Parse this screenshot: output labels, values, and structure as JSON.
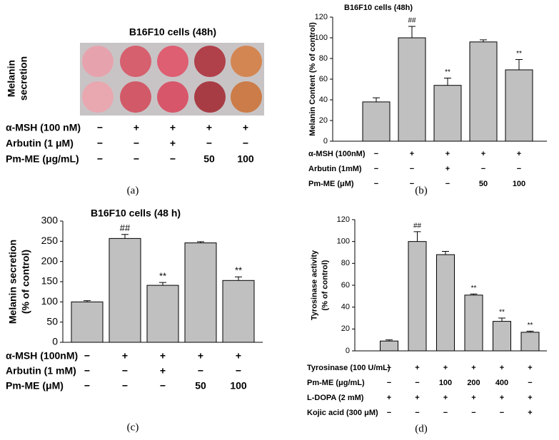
{
  "photo_panel": {
    "title": "B16F10 cells (48h)",
    "side_label": [
      "Melanin",
      "secretion"
    ],
    "treatments": [
      {
        "label": "α-MSH (100 nM)",
        "marks": [
          "−",
          "+",
          "+",
          "+",
          "+"
        ]
      },
      {
        "label": "Arbutin (1 μM)",
        "marks": [
          "−",
          "−",
          "+",
          "−",
          "−"
        ]
      },
      {
        "label": "Pm-ME (μg/mL)",
        "marks": [
          "−",
          "−",
          "−",
          "50",
          "100"
        ]
      }
    ]
  },
  "chart_data": [
    {
      "type": "bar",
      "title": "B16F10 cells (48h)",
      "ylabel": [
        "Melanin Content (% of control)"
      ],
      "values": [
        38,
        100,
        54,
        96,
        69
      ],
      "errors": [
        4,
        11,
        7,
        2,
        10
      ],
      "annotations": [
        null,
        "##",
        "**",
        null,
        "**"
      ],
      "color": "#c0c0c0",
      "ylim": [
        0,
        120
      ],
      "yticks": [
        0,
        20,
        40,
        60,
        80,
        100,
        120
      ],
      "treatments": [
        {
          "label": "α-MSH (100nM)",
          "marks": [
            "−",
            "+",
            "+",
            "+",
            "+"
          ]
        },
        {
          "label": "Arbutin (1mM)",
          "marks": [
            "−",
            "−",
            "+",
            "−",
            "−"
          ]
        },
        {
          "label": "Pm-ME (μM)",
          "marks": [
            "−",
            "−",
            "−",
            "50",
            "100"
          ]
        }
      ]
    },
    {
      "type": "bar",
      "title": "B16F10 cells (48 h)",
      "ylabel": [
        "Melanin secretion",
        "(% of control)"
      ],
      "values": [
        100,
        257,
        141,
        246,
        153
      ],
      "errors": [
        3,
        10,
        7,
        3,
        9
      ],
      "annotations": [
        null,
        "##",
        "**",
        null,
        "**"
      ],
      "color": "#c0c0c0",
      "ylim": [
        0,
        300
      ],
      "yticks": [
        0,
        50,
        100,
        150,
        200,
        250,
        300
      ],
      "treatments": [
        {
          "label": "α-MSH (100nM)",
          "marks": [
            "−",
            "+",
            "+",
            "+",
            "+"
          ]
        },
        {
          "label": "Arbutin (1 mM)",
          "marks": [
            "−",
            "−",
            "+",
            "−",
            "−"
          ]
        },
        {
          "label": "Pm-ME (μM)",
          "marks": [
            "−",
            "−",
            "−",
            "50",
            "100"
          ]
        }
      ]
    },
    {
      "type": "bar",
      "title": null,
      "ylabel": [
        "Tyrosinase activity",
        "(% of control)"
      ],
      "values": [
        9,
        100,
        88,
        51,
        27,
        17
      ],
      "errors": [
        1,
        9,
        3,
        1,
        3,
        1
      ],
      "annotations": [
        null,
        "##",
        null,
        "**",
        "**",
        "**"
      ],
      "color": "#c0c0c0",
      "ylim": [
        0,
        120
      ],
      "yticks": [
        0,
        20,
        40,
        60,
        80,
        100,
        120
      ],
      "treatments": [
        {
          "label": "Tyrosinase (100 U/mL)",
          "marks": [
            "−",
            "+",
            "+",
            "+",
            "+",
            "+"
          ]
        },
        {
          "label": "Pm-ME (μg/mL)",
          "marks": [
            "−",
            "−",
            "100",
            "200",
            "400",
            "−"
          ]
        },
        {
          "label": "L-DOPA (2 mM)",
          "marks": [
            "+",
            "+",
            "+",
            "+",
            "+",
            "+"
          ]
        },
        {
          "label": "Kojic acid (300 μM)",
          "marks": [
            "−",
            "−",
            "−",
            "−",
            "−",
            "+"
          ]
        }
      ]
    }
  ],
  "panel_labels": [
    "(a)",
    "(b)",
    "(c)",
    "(d)"
  ]
}
